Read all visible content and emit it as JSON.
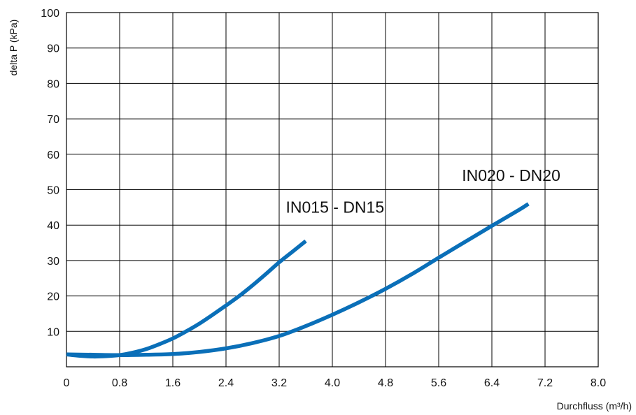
{
  "chart_data": {
    "type": "line",
    "xlabel": "Durchfluss (m³/h)",
    "ylabel": "delta P (kPa)",
    "xlim": [
      0,
      8.0
    ],
    "ylim": [
      0,
      100
    ],
    "grid": true,
    "x_ticks": [
      "0",
      "0.8",
      "1.6",
      "2.4",
      "3.2",
      "4.0",
      "4.8",
      "5.6",
      "6.4",
      "7.2",
      "8.0"
    ],
    "x_tick_values": [
      0,
      0.8,
      1.6,
      2.4,
      3.2,
      4.0,
      4.8,
      5.6,
      6.4,
      7.2,
      8.0
    ],
    "y_ticks": [
      "10",
      "20",
      "30",
      "40",
      "50",
      "60",
      "70",
      "80",
      "90",
      "100"
    ],
    "y_tick_values": [
      10,
      20,
      30,
      40,
      50,
      60,
      70,
      80,
      90,
      100
    ],
    "line_color": "#0a6fb8",
    "series": [
      {
        "name": "IN015 - DN15",
        "x": [
          0.0,
          0.2,
          0.4,
          0.6,
          0.8,
          1.0,
          1.2,
          1.4,
          1.6,
          1.8,
          2.0,
          2.2,
          2.4,
          2.6,
          2.8,
          3.0,
          3.2,
          3.4,
          3.6
        ],
        "y": [
          3.5,
          3.1,
          2.9,
          3.0,
          3.3,
          4.0,
          5.0,
          6.4,
          8.0,
          10.0,
          12.2,
          14.7,
          17.3,
          20.0,
          23.0,
          26.2,
          29.5,
          32.5,
          35.5
        ]
      },
      {
        "name": "IN020 - DN20",
        "x": [
          0.0,
          0.4,
          0.8,
          1.2,
          1.6,
          2.0,
          2.4,
          2.8,
          3.2,
          3.6,
          4.0,
          4.4,
          4.8,
          5.2,
          5.6,
          6.0,
          6.4,
          6.8,
          6.95
        ],
        "y": [
          3.5,
          3.4,
          3.3,
          3.4,
          3.6,
          4.2,
          5.2,
          6.7,
          8.7,
          11.5,
          14.7,
          18.2,
          22.0,
          26.2,
          30.8,
          35.3,
          39.8,
          44.2,
          46.0
        ]
      }
    ],
    "annotations": [
      {
        "text": "IN015 - DN15",
        "x": 3.3,
        "y": 43.5
      },
      {
        "text": "IN020 - DN20",
        "x": 5.95,
        "y": 52.5
      }
    ]
  }
}
